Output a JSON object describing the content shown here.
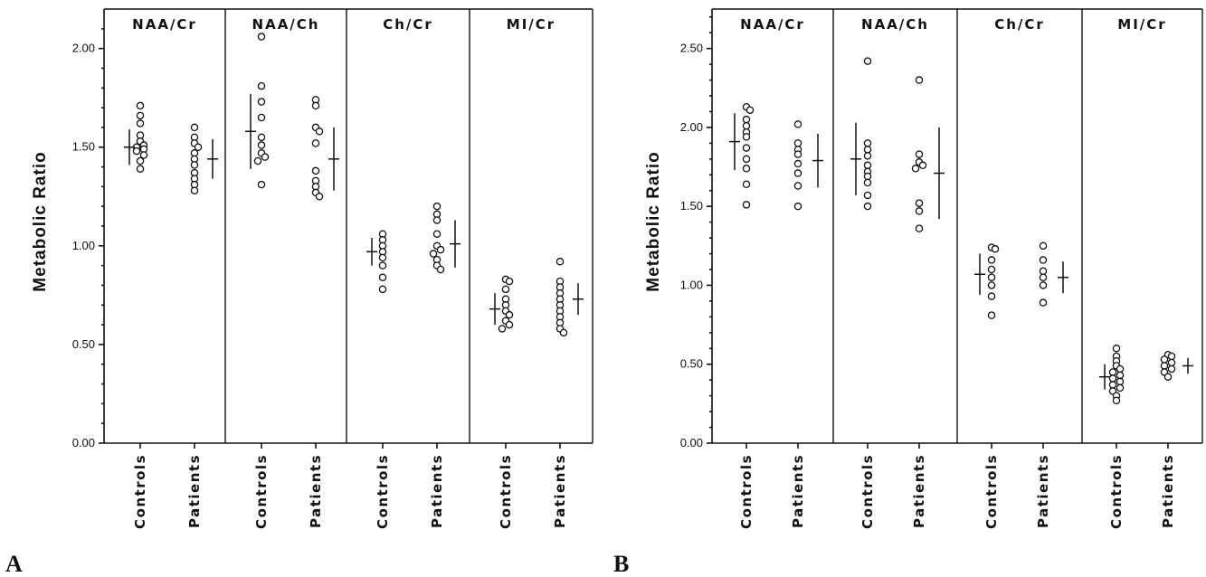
{
  "chart_data": [
    {
      "type": "scatter",
      "panel_label": "A",
      "ylabel": "Metabolic  Ratio",
      "ylim": [
        0,
        2.2
      ],
      "yticks": [
        "0.00",
        "0.50",
        "1.00",
        "1.50",
        "2.00"
      ],
      "grid": false,
      "groups": [
        "Controls",
        "Patients"
      ],
      "panels": [
        {
          "title": "NAA/Cr",
          "controls": {
            "values": [
              1.71,
              1.66,
              1.62,
              1.56,
              1.53,
              1.51,
              1.5,
              1.49,
              1.48,
              1.46,
              1.43,
              1.39
            ],
            "mean": 1.5,
            "sd": 0.09
          },
          "patients": {
            "values": [
              1.6,
              1.55,
              1.52,
              1.5,
              1.47,
              1.44,
              1.41,
              1.37,
              1.34,
              1.31,
              1.28
            ],
            "mean": 1.44,
            "sd": 0.1
          }
        },
        {
          "title": "NAA/Ch",
          "controls": {
            "values": [
              2.06,
              1.81,
              1.73,
              1.65,
              1.55,
              1.51,
              1.47,
              1.45,
              1.43,
              1.31
            ],
            "mean": 1.58,
            "sd": 0.19
          },
          "patients": {
            "values": [
              1.74,
              1.71,
              1.6,
              1.58,
              1.52,
              1.38,
              1.33,
              1.3,
              1.27,
              1.25
            ],
            "mean": 1.44,
            "sd": 0.16
          }
        },
        {
          "title": "Ch/Cr",
          "controls": {
            "values": [
              1.06,
              1.03,
              1.0,
              0.97,
              0.94,
              0.9,
              0.84,
              0.78
            ],
            "mean": 0.97,
            "sd": 0.07
          },
          "patients": {
            "values": [
              1.2,
              1.16,
              1.13,
              1.06,
              1.0,
              0.98,
              0.96,
              0.93,
              0.9,
              0.88
            ],
            "mean": 1.01,
            "sd": 0.12
          }
        },
        {
          "title": "MI/Cr",
          "controls": {
            "values": [
              0.83,
              0.82,
              0.78,
              0.73,
              0.7,
              0.67,
              0.65,
              0.62,
              0.6,
              0.58
            ],
            "mean": 0.68,
            "sd": 0.08
          },
          "patients": {
            "values": [
              0.92,
              0.82,
              0.79,
              0.76,
              0.73,
              0.7,
              0.67,
              0.64,
              0.61,
              0.58,
              0.56
            ],
            "mean": 0.73,
            "sd": 0.08
          }
        }
      ]
    },
    {
      "type": "scatter",
      "panel_label": "B",
      "ylabel": "Metabolic  Ratio",
      "ylim": [
        0,
        2.75
      ],
      "yticks": [
        "0.00",
        "0.50",
        "1.00",
        "1.50",
        "2.00",
        "2.50"
      ],
      "grid": false,
      "groups": [
        "Controls",
        "Patients"
      ],
      "panels": [
        {
          "title": "NAA/Cr",
          "controls": {
            "values": [
              2.13,
              2.11,
              2.05,
              2.01,
              1.97,
              1.94,
              1.87,
              1.8,
              1.74,
              1.64,
              1.51
            ],
            "mean": 1.91,
            "sd": 0.18
          },
          "patients": {
            "values": [
              2.02,
              1.9,
              1.86,
              1.83,
              1.77,
              1.71,
              1.63,
              1.5
            ],
            "mean": 1.79,
            "sd": 0.17
          }
        },
        {
          "title": "NAA/Ch",
          "controls": {
            "values": [
              2.42,
              1.9,
              1.86,
              1.82,
              1.76,
              1.72,
              1.69,
              1.65,
              1.57,
              1.5
            ],
            "mean": 1.8,
            "sd": 0.23
          },
          "patients": {
            "values": [
              2.3,
              1.83,
              1.78,
              1.76,
              1.74,
              1.52,
              1.47,
              1.36
            ],
            "mean": 1.71,
            "sd": 0.29
          }
        },
        {
          "title": "Ch/Cr",
          "controls": {
            "values": [
              1.24,
              1.23,
              1.16,
              1.1,
              1.05,
              1.0,
              0.93,
              0.81
            ],
            "mean": 1.07,
            "sd": 0.13
          },
          "patients": {
            "values": [
              1.25,
              1.16,
              1.09,
              1.05,
              1.0,
              0.89
            ],
            "mean": 1.05,
            "sd": 0.1
          }
        },
        {
          "title": "MI/Cr",
          "controls": {
            "values": [
              0.6,
              0.55,
              0.52,
              0.49,
              0.47,
              0.45,
              0.43,
              0.41,
              0.39,
              0.37,
              0.35,
              0.33,
              0.3,
              0.27
            ],
            "mean": 0.42,
            "sd": 0.08
          },
          "patients": {
            "values": [
              0.56,
              0.55,
              0.53,
              0.51,
              0.49,
              0.47,
              0.45,
              0.42
            ],
            "mean": 0.49,
            "sd": 0.05
          }
        }
      ]
    }
  ]
}
